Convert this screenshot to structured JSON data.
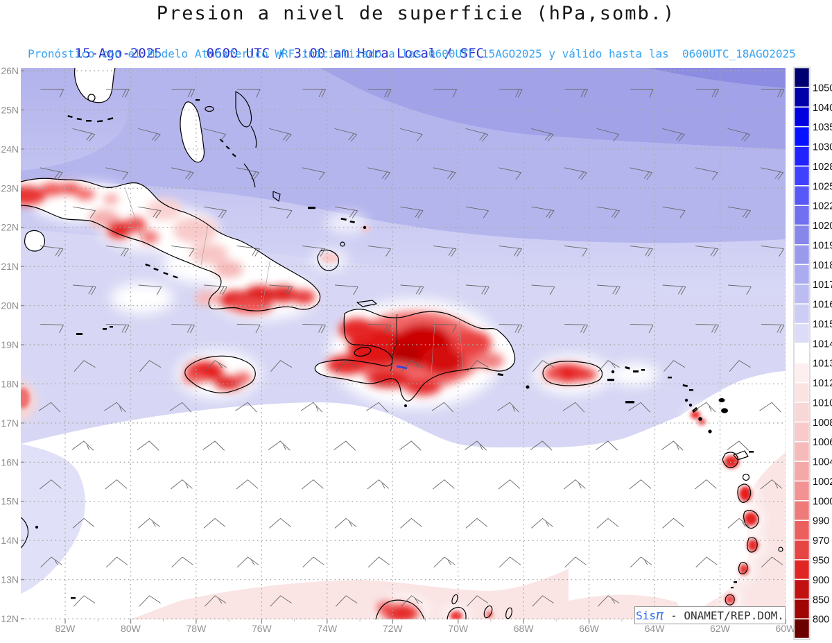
{
  "header": {
    "title": "Presion a nivel de superficie (hPa,somb.)",
    "date": "15-Ago-2025",
    "validity": "0600 UTC / 3:00 am Hora Local / SFC",
    "forecast_note": "Pronóstico con el Modelo Atmósferico WRF inicializado a las 0600UTC_15AGO2025 y válido hasta las  0600UTC_18AGO2025"
  },
  "axes": {
    "lat_labels": [
      "26N",
      "25N",
      "24N",
      "23N",
      "22N",
      "21N",
      "20N",
      "19N",
      "18N",
      "17N",
      "16N",
      "15N",
      "14N",
      "13N",
      "12N"
    ],
    "lon_labels": [
      "82W",
      "80W",
      "78W",
      "76W",
      "74W",
      "72W",
      "70W",
      "68W",
      "66W",
      "64W",
      "62W",
      "60W"
    ]
  },
  "colorbar": {
    "units": "hPa",
    "levels": [
      "1050",
      "1040",
      "1035",
      "1030",
      "1028",
      "1025",
      "1022",
      "1020",
      "1019",
      "1018",
      "1017",
      "1016",
      "1015",
      "1014",
      "1013",
      "1012",
      "1010",
      "1008",
      "1006",
      "1004",
      "1002",
      "1000",
      "990",
      "970",
      "950",
      "900",
      "850",
      "800"
    ],
    "colors": [
      "#000070",
      "#0000a8",
      "#0000e0",
      "#0511ff",
      "#2222ff",
      "#4040ff",
      "#5858f8",
      "#7070f0",
      "#8686eb",
      "#9a9aec",
      "#ababef",
      "#bcbcf2",
      "#ccccf5",
      "#dcdcf8",
      "#ffffff",
      "#fdefef",
      "#fce3e3",
      "#fad7d7",
      "#f9caca",
      "#f7baba",
      "#f5a8a8",
      "#f29292",
      "#ef7a7a",
      "#eb5f5f",
      "#e74444",
      "#e02525",
      "#c21111",
      "#a00505",
      "#6b0000"
    ]
  },
  "credit": {
    "prefix": "Sis",
    "pi": "π",
    "suffix": " - ONAMET/REP.DOM."
  },
  "palette": {
    "band_dark": "#8c8ce2",
    "band_mid": "#a2a2e9",
    "band_light": "#b5b5ee",
    "band_pale": "#d7d7f5",
    "low_pink": "#fae4e4",
    "red_core": "#b80000",
    "grid_gray": "#a8a8a8",
    "axis_gray": "#909090",
    "barb_gray": "#666666"
  },
  "chart_data": {
    "type": "heatmap",
    "title": "Presion a nivel de superficie (hPa,somb.)",
    "units": "hPa",
    "lat_ticks": [
      "26N",
      "25N",
      "24N",
      "23N",
      "22N",
      "21N",
      "20N",
      "19N",
      "18N",
      "17N",
      "16N",
      "15N",
      "14N",
      "13N",
      "12N"
    ],
    "lon_ticks": [
      "82W",
      "80W",
      "78W",
      "76W",
      "74W",
      "72W",
      "70W",
      "68W",
      "66W",
      "64W",
      "62W",
      "60W"
    ],
    "shade_levels": [
      1050,
      1040,
      1035,
      1030,
      1028,
      1025,
      1022,
      1020,
      1019,
      1018,
      1017,
      1016,
      1015,
      1014,
      1013,
      1012,
      1010,
      1008,
      1006,
      1004,
      1002,
      1000,
      990,
      970,
      950,
      900,
      850,
      800
    ],
    "legend_position": "right",
    "overlays": [
      "wind-barbs",
      "coastlines",
      "lat-lon-dotted-grid"
    ],
    "notes": "High pressure (blue shades) across the Atlantic to the north; near-1013 white band across the central Caribbean; sub-1013 pink to the south; strong low (red) shading over island terrain: Cuba, Jamaica, Hispaniola, Puerto Rico, Lesser Antilles, Guajira"
  }
}
